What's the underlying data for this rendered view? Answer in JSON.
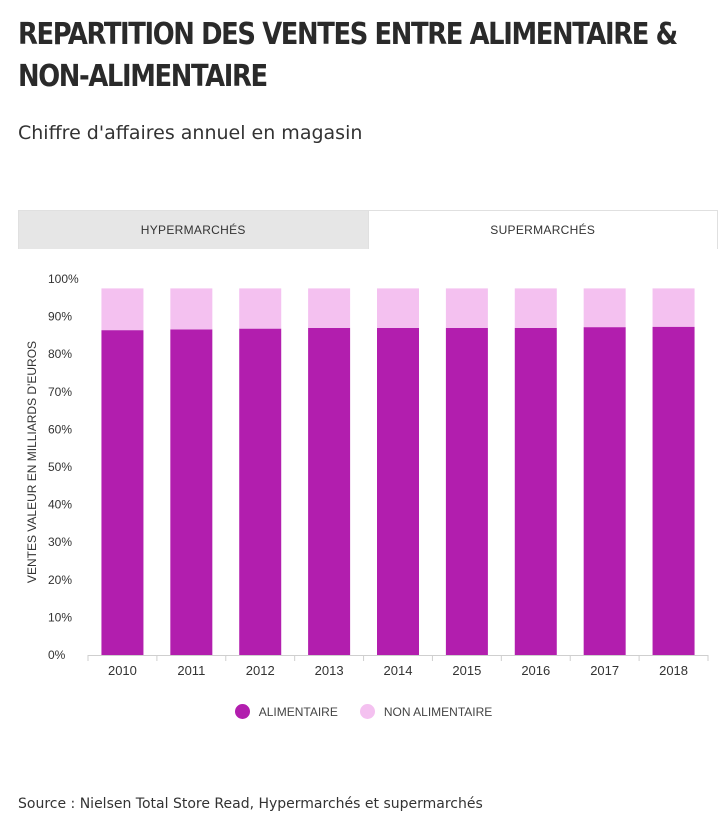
{
  "header": {
    "title": "REPARTITION DES VENTES ENTRE ALIMENTAIRE & NON-ALIMENTAIRE",
    "subtitle": "Chiffre d'affaires annuel en magasin"
  },
  "tabs": [
    {
      "label": "HYPERMARCHÉS",
      "active": false
    },
    {
      "label": "SUPERMARCHÉS",
      "active": true
    }
  ],
  "footer": {
    "source": "Source : Nielsen Total Store Read, Hypermarchés et supermarchés"
  },
  "colors": {
    "alimentaire": "#b21eae",
    "non_alimentaire": "#f4c1f0"
  },
  "chart_data": {
    "type": "bar",
    "stacked": true,
    "categories": [
      "2010",
      "2011",
      "2012",
      "2013",
      "2014",
      "2015",
      "2016",
      "2017",
      "2018"
    ],
    "series": [
      {
        "name": "ALIMENTAIRE",
        "values": [
          86.4,
          86.6,
          86.8,
          87.0,
          87.0,
          87.0,
          87.0,
          87.2,
          87.3
        ]
      },
      {
        "name": "NON ALIMENTAIRE",
        "values": [
          11.1,
          10.9,
          10.7,
          10.5,
          10.5,
          10.5,
          10.5,
          10.3,
          10.2
        ]
      }
    ],
    "ylabel": "VENTES VALEUR EN MILLIARDS D'EUROS",
    "ylim": [
      0,
      100
    ],
    "yticks": [
      "0%",
      "10%",
      "20%",
      "30%",
      "40%",
      "50%",
      "60%",
      "70%",
      "80%",
      "90%",
      "100%"
    ],
    "grid": false,
    "legend_position": "bottom"
  }
}
